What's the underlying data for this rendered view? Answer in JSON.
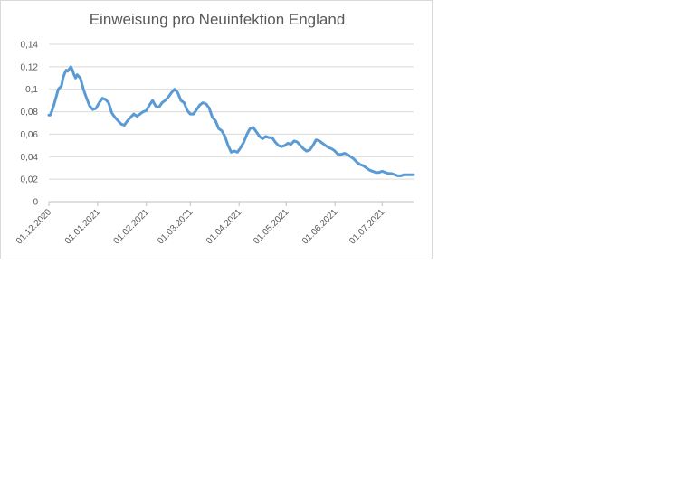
{
  "chart_data": {
    "type": "line",
    "title": "Einweisung pro Neuinfektion England",
    "xlabel": "",
    "ylabel": "",
    "ylim": [
      0,
      0.14
    ],
    "yticks": [
      0,
      0.02,
      0.04,
      0.06,
      0.08,
      0.1,
      0.12,
      0.14
    ],
    "ytick_labels": [
      "0",
      "0,02",
      "0,04",
      "0,06",
      "0,08",
      "0,1",
      "0,12",
      "0,14"
    ],
    "xlim": [
      "2020-12-01",
      "2021-07-21"
    ],
    "xticks": [
      "2020-12-01",
      "2021-01-01",
      "2021-02-01",
      "2021-03-01",
      "2021-04-01",
      "2021-05-01",
      "2021-06-01",
      "2021-07-01"
    ],
    "xtick_labels": [
      "01.12.2020",
      "01.01.2021",
      "01.02.2021",
      "01.03.2021",
      "01.04.2021",
      "01.05.2021",
      "01.06.2021",
      "01.07.2021"
    ],
    "grid": "horizontal",
    "legend": "none",
    "line_color": "#5b9bd5",
    "series": [
      {
        "x": [
          "2020-12-01",
          "2020-12-02",
          "2020-12-04",
          "2020-12-06",
          "2020-12-07",
          "2020-12-09",
          "2020-12-10",
          "2020-12-11",
          "2020-12-12",
          "2020-12-13",
          "2020-12-14",
          "2020-12-15",
          "2020-12-16",
          "2020-12-17",
          "2020-12-18",
          "2020-12-19",
          "2020-12-21",
          "2020-12-23",
          "2020-12-25",
          "2020-12-27",
          "2020-12-29",
          "2020-12-31",
          "2021-01-02",
          "2021-01-04",
          "2021-01-06",
          "2021-01-08",
          "2021-01-10",
          "2021-01-12",
          "2021-01-14",
          "2021-01-16",
          "2021-01-18",
          "2021-01-20",
          "2021-01-22",
          "2021-01-24",
          "2021-01-26",
          "2021-01-28",
          "2021-01-30",
          "2021-02-01",
          "2021-02-03",
          "2021-02-05",
          "2021-02-07",
          "2021-02-09",
          "2021-02-11",
          "2021-02-13",
          "2021-02-15",
          "2021-02-17",
          "2021-02-19",
          "2021-02-21",
          "2021-02-23",
          "2021-02-25",
          "2021-02-27",
          "2021-03-01",
          "2021-03-03",
          "2021-03-05",
          "2021-03-07",
          "2021-03-09",
          "2021-03-11",
          "2021-03-13",
          "2021-03-15",
          "2021-03-17",
          "2021-03-19",
          "2021-03-21",
          "2021-03-23",
          "2021-03-25",
          "2021-03-27",
          "2021-03-29",
          "2021-03-31",
          "2021-04-02",
          "2021-04-04",
          "2021-04-06",
          "2021-04-08",
          "2021-04-10",
          "2021-04-12",
          "2021-04-14",
          "2021-04-16",
          "2021-04-18",
          "2021-04-20",
          "2021-04-22",
          "2021-04-24",
          "2021-04-26",
          "2021-04-28",
          "2021-04-30",
          "2021-05-02",
          "2021-05-04",
          "2021-05-06",
          "2021-05-08",
          "2021-05-10",
          "2021-05-12",
          "2021-05-14",
          "2021-05-16",
          "2021-05-18",
          "2021-05-20",
          "2021-05-22",
          "2021-05-24",
          "2021-05-26",
          "2021-05-28",
          "2021-05-30",
          "2021-06-01",
          "2021-06-03",
          "2021-06-05",
          "2021-06-07",
          "2021-06-09",
          "2021-06-11",
          "2021-06-13",
          "2021-06-15",
          "2021-06-17",
          "2021-06-19",
          "2021-06-21",
          "2021-06-23",
          "2021-06-25",
          "2021-06-27",
          "2021-06-29",
          "2021-07-01",
          "2021-07-03",
          "2021-07-05",
          "2021-07-07",
          "2021-07-09",
          "2021-07-11",
          "2021-07-13",
          "2021-07-15",
          "2021-07-17",
          "2021-07-19",
          "2021-07-21"
        ],
        "values": [
          0.077,
          0.077,
          0.085,
          0.095,
          0.1,
          0.103,
          0.11,
          0.114,
          0.117,
          0.116,
          0.118,
          0.12,
          0.117,
          0.113,
          0.11,
          0.113,
          0.11,
          0.1,
          0.092,
          0.085,
          0.082,
          0.083,
          0.088,
          0.092,
          0.091,
          0.088,
          0.079,
          0.075,
          0.072,
          0.069,
          0.068,
          0.072,
          0.075,
          0.078,
          0.076,
          0.078,
          0.08,
          0.081,
          0.086,
          0.09,
          0.085,
          0.084,
          0.088,
          0.09,
          0.093,
          0.097,
          0.1,
          0.097,
          0.09,
          0.088,
          0.081,
          0.078,
          0.078,
          0.082,
          0.086,
          0.088,
          0.087,
          0.083,
          0.075,
          0.072,
          0.065,
          0.063,
          0.058,
          0.05,
          0.044,
          0.045,
          0.044,
          0.048,
          0.053,
          0.06,
          0.065,
          0.066,
          0.062,
          0.058,
          0.056,
          0.058,
          0.057,
          0.057,
          0.053,
          0.05,
          0.049,
          0.05,
          0.052,
          0.051,
          0.054,
          0.053,
          0.05,
          0.047,
          0.045,
          0.046,
          0.05,
          0.055,
          0.054,
          0.052,
          0.05,
          0.048,
          0.047,
          0.045,
          0.042,
          0.042,
          0.043,
          0.042,
          0.04,
          0.038,
          0.035,
          0.033,
          0.032,
          0.03,
          0.028,
          0.027,
          0.026,
          0.026,
          0.027,
          0.026,
          0.025,
          0.025,
          0.024,
          0.023,
          0.023,
          0.024,
          0.024,
          0.024,
          0.024
        ]
      }
    ]
  }
}
